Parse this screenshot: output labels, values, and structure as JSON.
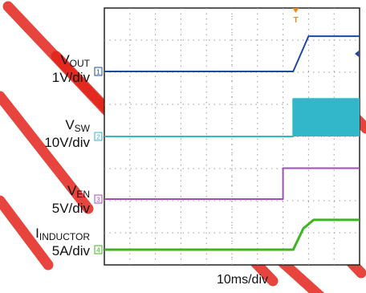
{
  "chart_data": {
    "type": "line",
    "title": "",
    "xlabel": "10ms/div",
    "series": [
      {
        "name": "VOUT",
        "name_main": "V",
        "name_sub": "OUT",
        "scale": "1V/div",
        "marker": "1",
        "color": "#1f47a8",
        "x": [
          0,
          37,
          40,
          42,
          50
        ],
        "y": [
          0,
          0,
          3.3,
          3.3,
          3.3
        ]
      },
      {
        "name": "VSW",
        "name_main": "V",
        "name_sub": "SW",
        "scale": "10V/div",
        "marker": "2",
        "color": "#32b6c9",
        "x": [
          0,
          37,
          37,
          50
        ],
        "y": [
          0,
          0,
          13,
          13
        ],
        "switching_band": {
          "from_x": 37,
          "to_x": 50,
          "low": 0,
          "high": 13
        }
      },
      {
        "name": "VEN",
        "name_main": "V",
        "name_sub": "EN",
        "scale": "5V/div",
        "marker": "3",
        "color": "#a14cba",
        "x": [
          0,
          35,
          35,
          50
        ],
        "y": [
          0,
          0,
          5.5,
          5.5
        ]
      },
      {
        "name": "IINDUCTOR",
        "name_main": "I",
        "name_sub": "INDUCTOR",
        "scale": "5A/div",
        "marker": "4",
        "color": "#3cb521",
        "x": [
          0,
          37,
          39,
          41,
          50
        ],
        "y": [
          0,
          0,
          5,
          7,
          7
        ]
      }
    ],
    "xlim": [
      0,
      50
    ],
    "grid": true,
    "trigger_marker": "T"
  },
  "colors": {
    "watermark": "#e2231a",
    "grid": "#9a9a9a"
  }
}
